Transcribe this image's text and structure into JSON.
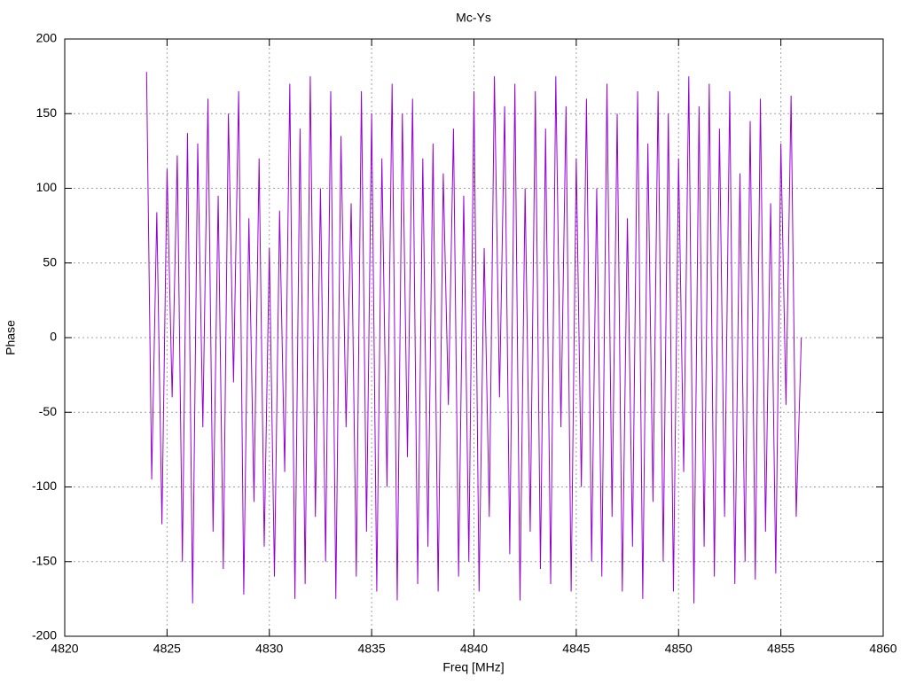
{
  "chart_data": {
    "type": "line",
    "title": "Mc-Ys",
    "x_label": "Freq [MHz]",
    "y_label": "Phase",
    "color": "#9400d3",
    "grid": true,
    "xlim": [
      4820,
      4860
    ],
    "xticks": [
      4820,
      4825,
      4830,
      4835,
      4840,
      4845,
      4850,
      4855,
      4860
    ],
    "ylim": [
      -200,
      200
    ],
    "yticks": [
      -200,
      -150,
      -100,
      -50,
      0,
      50,
      100,
      150,
      200
    ],
    "x": [
      4824,
      4824.25,
      4824.5,
      4824.75,
      4825,
      4825.25,
      4825.5,
      4825.75,
      4826,
      4826.25,
      4826.5,
      4826.75,
      4827,
      4827.25,
      4827.5,
      4827.75,
      4828,
      4828.25,
      4828.5,
      4828.75,
      4829,
      4829.25,
      4829.5,
      4829.75,
      4830,
      4830.25,
      4830.5,
      4830.75,
      4831,
      4831.25,
      4831.5,
      4831.75,
      4832,
      4832.25,
      4832.5,
      4832.75,
      4833,
      4833.25,
      4833.5,
      4833.75,
      4834,
      4834.25,
      4834.5,
      4834.75,
      4835,
      4835.25,
      4835.5,
      4835.75,
      4836,
      4836.25,
      4836.5,
      4836.75,
      4837,
      4837.25,
      4837.5,
      4837.75,
      4838,
      4838.25,
      4838.5,
      4838.75,
      4839,
      4839.25,
      4839.5,
      4839.75,
      4840,
      4840.25,
      4840.5,
      4840.75,
      4841,
      4841.25,
      4841.5,
      4841.75,
      4842,
      4842.25,
      4842.5,
      4842.75,
      4843,
      4843.25,
      4843.5,
      4843.75,
      4844,
      4844.25,
      4844.5,
      4844.75,
      4845,
      4845.25,
      4845.5,
      4845.75,
      4846,
      4846.25,
      4846.5,
      4846.75,
      4847,
      4847.25,
      4847.5,
      4847.75,
      4848,
      4848.25,
      4848.5,
      4848.75,
      4849,
      4849.25,
      4849.5,
      4849.75,
      4850,
      4850.25,
      4850.5,
      4850.75,
      4851,
      4851.25,
      4851.5,
      4851.75,
      4852,
      4852.25,
      4852.5,
      4852.75,
      4853,
      4853.25,
      4853.5,
      4853.75,
      4854,
      4854.25,
      4854.5,
      4854.75,
      4855,
      4855.25,
      4855.5,
      4855.75,
      4856
    ],
    "values": [
      178,
      -95,
      84,
      -125,
      113,
      -40,
      122,
      -150,
      137,
      -178,
      130,
      -60,
      160,
      -130,
      95,
      -155,
      150,
      -30,
      165,
      -172,
      80,
      -110,
      120,
      -140,
      60,
      -160,
      85,
      -90,
      170,
      -175,
      140,
      -165,
      175,
      -120,
      100,
      -150,
      165,
      -175,
      135,
      -60,
      90,
      -160,
      165,
      -130,
      150,
      -170,
      120,
      -100,
      170,
      -176,
      150,
      -80,
      160,
      -165,
      120,
      -140,
      130,
      -170,
      110,
      -45,
      140,
      -160,
      95,
      -150,
      165,
      -170,
      60,
      -120,
      175,
      -40,
      155,
      -145,
      170,
      -176,
      100,
      -130,
      165,
      -155,
      140,
      -165,
      175,
      -60,
      155,
      -170,
      120,
      -100,
      160,
      -150,
      100,
      -160,
      170,
      -120,
      150,
      -170,
      80,
      -140,
      165,
      -175,
      130,
      -110,
      165,
      -150,
      150,
      -170,
      120,
      -90,
      175,
      -178,
      155,
      -140,
      170,
      -160,
      140,
      -120,
      165,
      -165,
      110,
      -150,
      145,
      -162,
      160,
      -130,
      90,
      -158,
      130,
      -45,
      162,
      -120,
      0
    ]
  }
}
